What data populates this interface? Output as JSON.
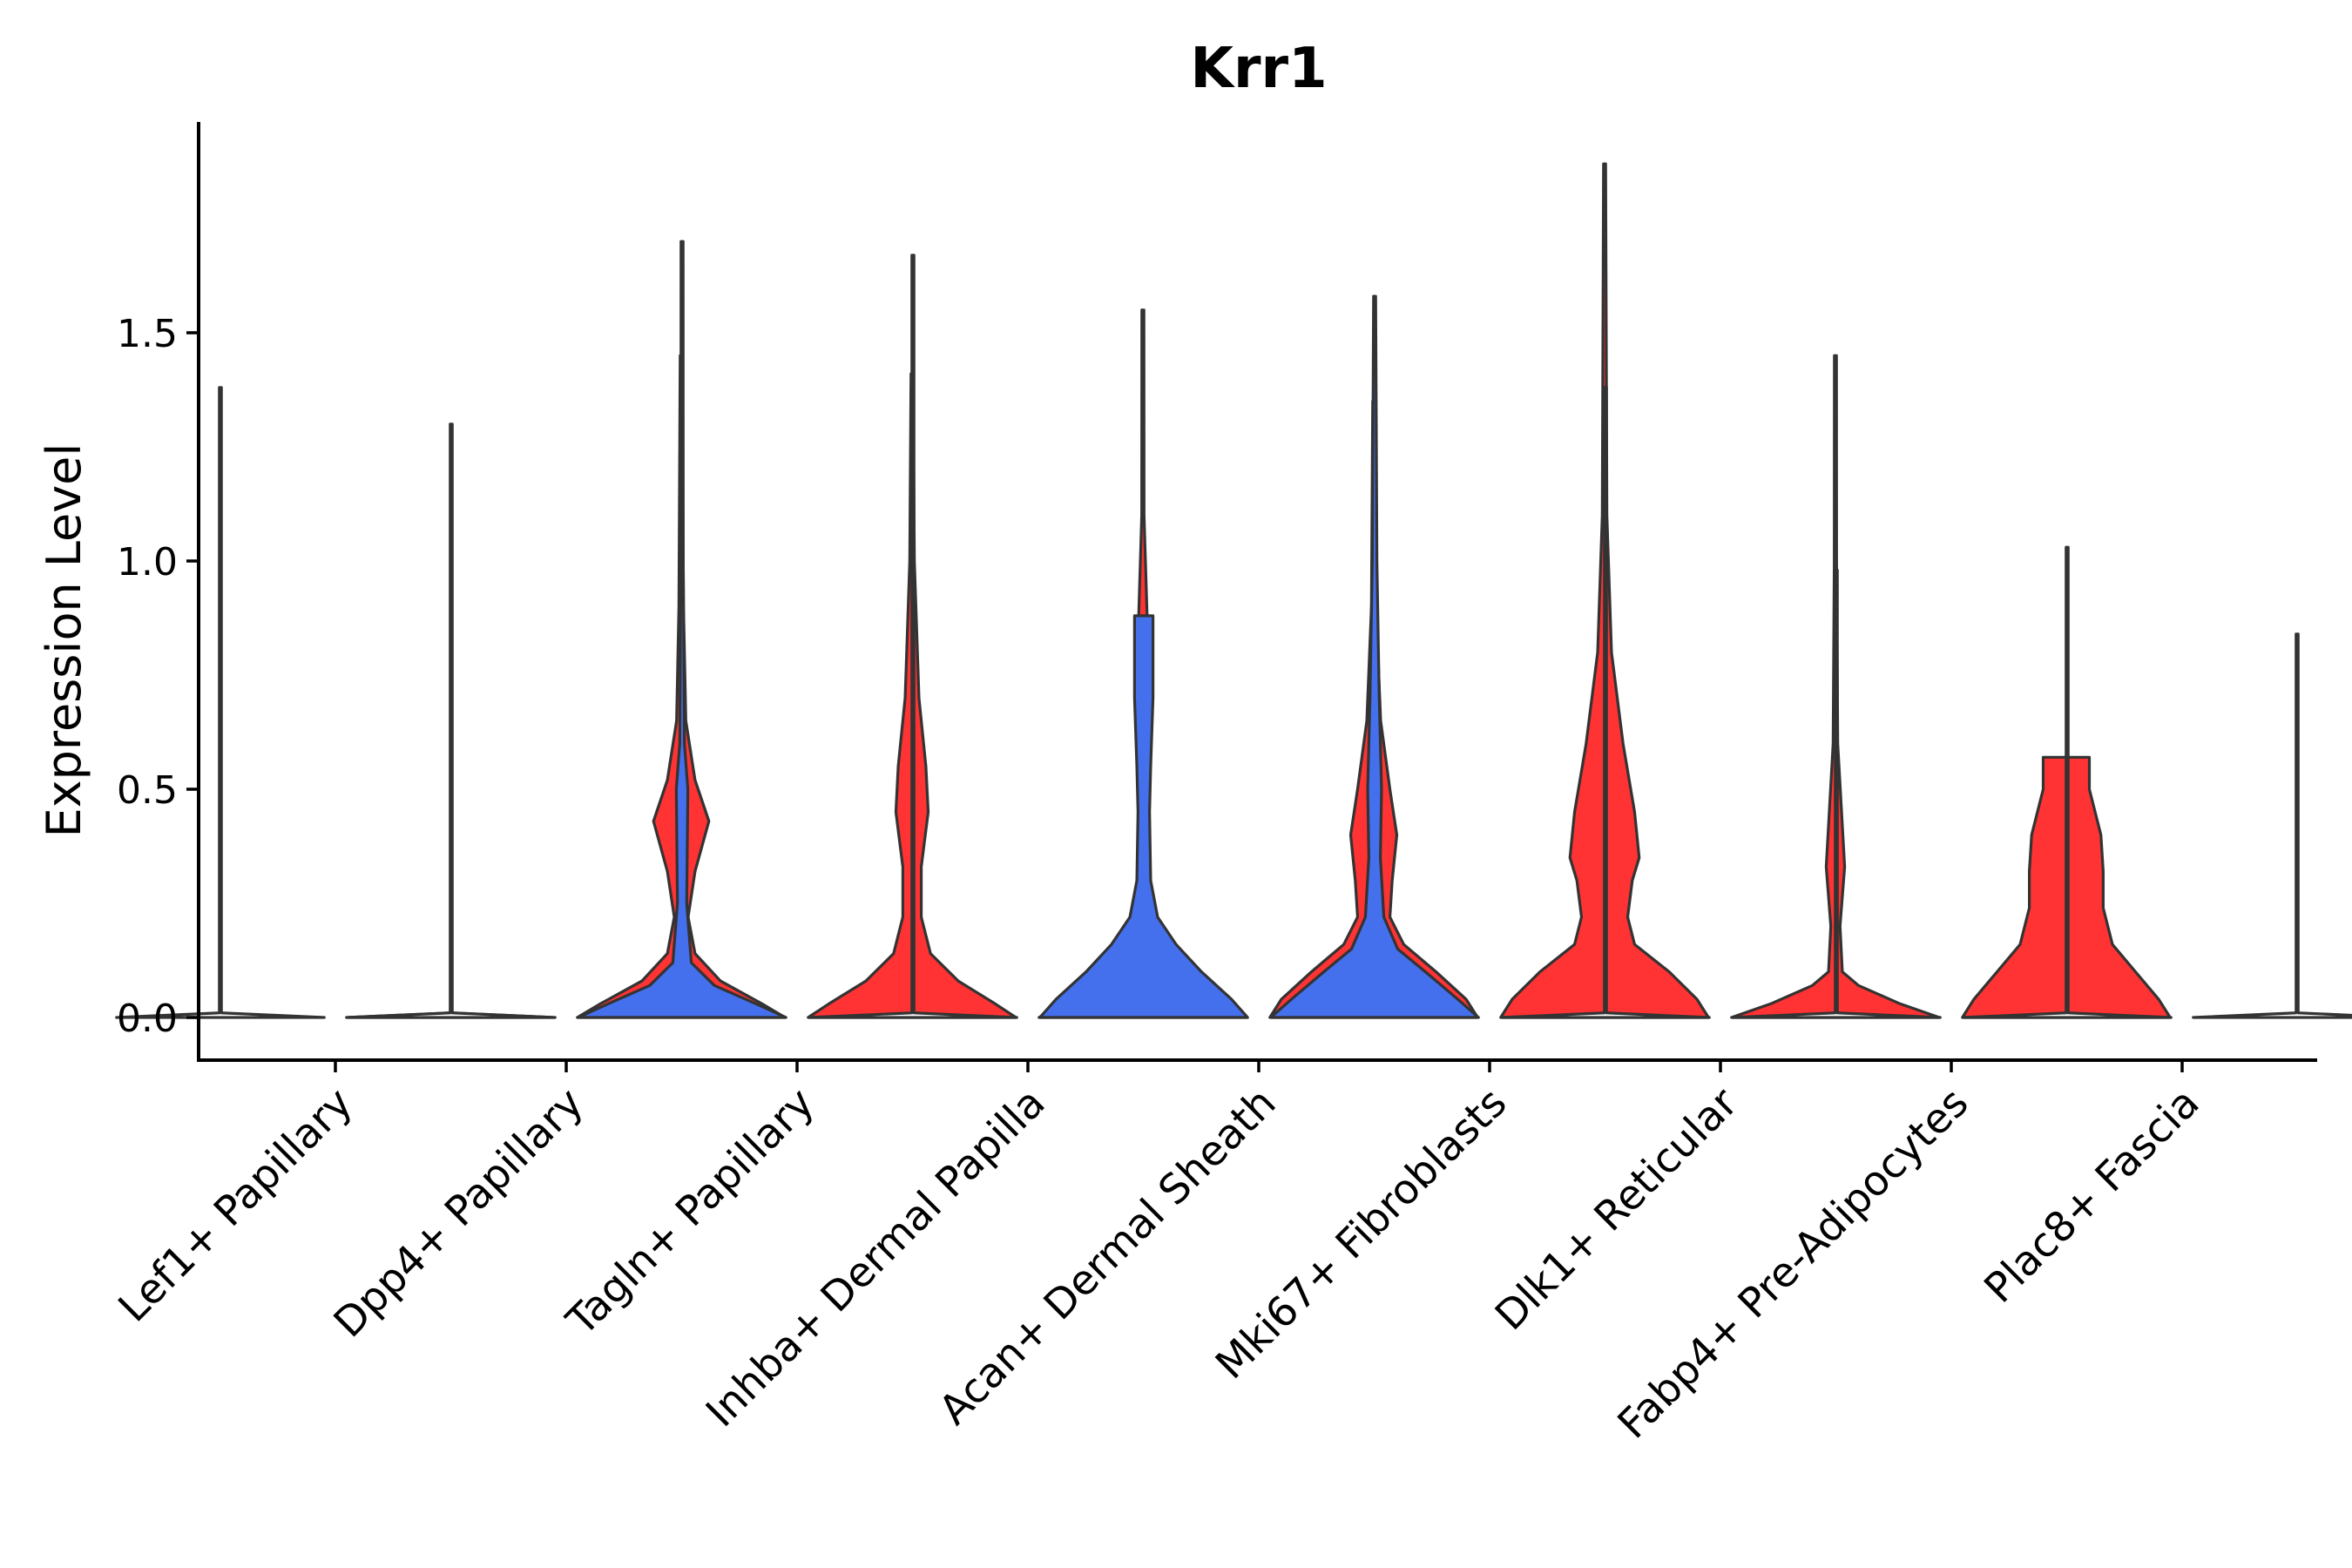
{
  "chart_data": {
    "type": "violin",
    "title": "Krr1",
    "xlabel": "",
    "ylabel": "Expression Level",
    "ylim": [
      -0.09,
      1.95
    ],
    "yticks": [
      {
        "value": 0.0,
        "label": "0.0"
      },
      {
        "value": 0.5,
        "label": "0.5"
      },
      {
        "value": 1.0,
        "label": "1.0"
      },
      {
        "value": 1.5,
        "label": "1.5"
      }
    ],
    "categories": [
      "Lef1+ Papillary",
      "Dpp4+ Papillary",
      "Tagln+ Papillary",
      "Inhba+ Dermal Papilla",
      "Acan+ Dermal Sheath",
      "Mki67+ Fibroblasts",
      "Dlk1+ Reticular",
      "Fabp4+ Pre-Adipocytes",
      "Plac8+ Fascia"
    ],
    "colors": {
      "blue": "#4470ED",
      "red": "#FF3333",
      "none": "#FFFFFF"
    },
    "violins": [
      {
        "category_index": 0,
        "side": "left",
        "color": "none",
        "max": 1.38,
        "density": [
          [
            0,
            0.45
          ],
          [
            0.01,
            0.0
          ],
          [
            1.38,
            0.0
          ]
        ]
      },
      {
        "category_index": 0,
        "side": "right",
        "color": "none",
        "max": 0.0,
        "density": [
          [
            0,
            0.45
          ],
          [
            0.01,
            0.0
          ]
        ]
      },
      {
        "category_index": 1,
        "side": "left",
        "color": "none",
        "max": 1.3,
        "density": [
          [
            0,
            0.45
          ],
          [
            0.01,
            0.0
          ],
          [
            1.3,
            0.0
          ]
        ]
      },
      {
        "category_index": 1,
        "side": "right",
        "color": "red",
        "max": 1.45,
        "density": [
          [
            0,
            0.45
          ],
          [
            0.03,
            0.35
          ],
          [
            0.08,
            0.17
          ],
          [
            0.14,
            0.06
          ],
          [
            0.22,
            0.03
          ],
          [
            0.32,
            0.06
          ],
          [
            0.43,
            0.12
          ],
          [
            0.52,
            0.06
          ],
          [
            0.65,
            0.02
          ],
          [
            0.9,
            0.01
          ],
          [
            1.45,
            0.0
          ]
        ]
      },
      {
        "category_index": 2,
        "side": "left",
        "color": "blue",
        "max": 1.7,
        "density": [
          [
            0,
            0.45
          ],
          [
            0.03,
            0.32
          ],
          [
            0.07,
            0.14
          ],
          [
            0.12,
            0.04
          ],
          [
            0.25,
            0.02
          ],
          [
            0.5,
            0.025
          ],
          [
            0.6,
            0.01
          ],
          [
            1.0,
            0.005
          ],
          [
            1.7,
            0.0
          ]
        ]
      },
      {
        "category_index": 2,
        "side": "right",
        "color": "red",
        "max": 1.41,
        "density": [
          [
            0,
            0.45
          ],
          [
            0.03,
            0.36
          ],
          [
            0.08,
            0.2
          ],
          [
            0.14,
            0.08
          ],
          [
            0.22,
            0.04
          ],
          [
            0.33,
            0.04
          ],
          [
            0.45,
            0.07
          ],
          [
            0.55,
            0.06
          ],
          [
            0.7,
            0.03
          ],
          [
            1.0,
            0.01
          ],
          [
            1.41,
            0.0
          ]
        ]
      },
      {
        "category_index": 3,
        "side": "left",
        "color": "none",
        "max": 1.67,
        "density": [
          [
            0,
            0.45
          ],
          [
            0.01,
            0.0
          ],
          [
            1.67,
            0.0
          ]
        ]
      },
      {
        "category_index": 3,
        "side": "right",
        "color": "red",
        "max": 1.55,
        "density": [
          [
            0,
            0.45
          ],
          [
            0.03,
            0.35
          ],
          [
            0.08,
            0.18
          ],
          [
            0.14,
            0.06
          ],
          [
            0.2,
            0.02
          ],
          [
            0.4,
            0.015
          ],
          [
            0.6,
            0.02
          ],
          [
            0.85,
            0.02
          ],
          [
            1.1,
            0.005
          ],
          [
            1.55,
            0.0
          ]
        ]
      },
      {
        "category_index": 4,
        "side": "left",
        "color": "blue",
        "max": 0.88,
        "density": [
          [
            0,
            0.45
          ],
          [
            0.04,
            0.38
          ],
          [
            0.1,
            0.25
          ],
          [
            0.16,
            0.14
          ],
          [
            0.22,
            0.06
          ],
          [
            0.3,
            0.03
          ],
          [
            0.45,
            0.025
          ],
          [
            0.55,
            0.03
          ],
          [
            0.7,
            0.04
          ],
          [
            0.88,
            0.04
          ]
        ]
      },
      {
        "category_index": 4,
        "side": "right",
        "color": "red",
        "max": 1.35,
        "density": [
          [
            0,
            0.45
          ],
          [
            0.04,
            0.4
          ],
          [
            0.1,
            0.27
          ],
          [
            0.16,
            0.13
          ],
          [
            0.22,
            0.07
          ],
          [
            0.3,
            0.08
          ],
          [
            0.4,
            0.1
          ],
          [
            0.5,
            0.07
          ],
          [
            0.65,
            0.03
          ],
          [
            0.9,
            0.01
          ],
          [
            1.35,
            0.0
          ]
        ]
      },
      {
        "category_index": 5,
        "side": "left",
        "color": "blue",
        "max": 1.58,
        "density": [
          [
            0,
            0.45
          ],
          [
            0.04,
            0.36
          ],
          [
            0.1,
            0.22
          ],
          [
            0.15,
            0.1
          ],
          [
            0.22,
            0.04
          ],
          [
            0.35,
            0.025
          ],
          [
            0.5,
            0.03
          ],
          [
            0.7,
            0.02
          ],
          [
            1.0,
            0.01
          ],
          [
            1.58,
            0.0
          ]
        ]
      },
      {
        "category_index": 5,
        "side": "right",
        "color": "red",
        "max": 1.87,
        "density": [
          [
            0,
            0.45
          ],
          [
            0.04,
            0.4
          ],
          [
            0.1,
            0.28
          ],
          [
            0.16,
            0.13
          ],
          [
            0.22,
            0.1
          ],
          [
            0.3,
            0.12
          ],
          [
            0.35,
            0.15
          ],
          [
            0.45,
            0.13
          ],
          [
            0.6,
            0.08
          ],
          [
            0.8,
            0.03
          ],
          [
            1.1,
            0.01
          ],
          [
            1.87,
            0.0
          ]
        ]
      },
      {
        "category_index": 6,
        "side": "left",
        "color": "none",
        "max": 1.38,
        "density": [
          [
            0,
            0.45
          ],
          [
            0.01,
            0.0
          ],
          [
            1.38,
            0.0
          ]
        ]
      },
      {
        "category_index": 6,
        "side": "right",
        "color": "red",
        "max": 1.45,
        "density": [
          [
            0,
            0.45
          ],
          [
            0.03,
            0.28
          ],
          [
            0.07,
            0.1
          ],
          [
            0.1,
            0.03
          ],
          [
            0.2,
            0.02
          ],
          [
            0.33,
            0.04
          ],
          [
            0.42,
            0.03
          ],
          [
            0.6,
            0.01
          ],
          [
            1.0,
            0.005
          ],
          [
            1.45,
            0.0
          ]
        ]
      },
      {
        "category_index": 7,
        "side": "left",
        "color": "none",
        "max": 0.98,
        "density": [
          [
            0,
            0.45
          ],
          [
            0.01,
            0.0
          ],
          [
            0.98,
            0.0
          ]
        ]
      },
      {
        "category_index": 7,
        "side": "right",
        "color": "red",
        "max": 0.57,
        "density": [
          [
            0,
            0.45
          ],
          [
            0.04,
            0.4
          ],
          [
            0.1,
            0.3
          ],
          [
            0.16,
            0.2
          ],
          [
            0.24,
            0.16
          ],
          [
            0.32,
            0.16
          ],
          [
            0.4,
            0.15
          ],
          [
            0.5,
            0.1
          ],
          [
            0.57,
            0.1
          ]
        ]
      },
      {
        "category_index": 8,
        "side": "left",
        "color": "none",
        "max": 1.03,
        "density": [
          [
            0,
            0.45
          ],
          [
            0.01,
            0.0
          ],
          [
            1.03,
            0.0
          ]
        ]
      },
      {
        "category_index": 8,
        "side": "right",
        "color": "none",
        "max": 0.84,
        "density": [
          [
            0,
            0.45
          ],
          [
            0.01,
            0.0
          ],
          [
            0.84,
            0.0
          ]
        ]
      }
    ]
  }
}
